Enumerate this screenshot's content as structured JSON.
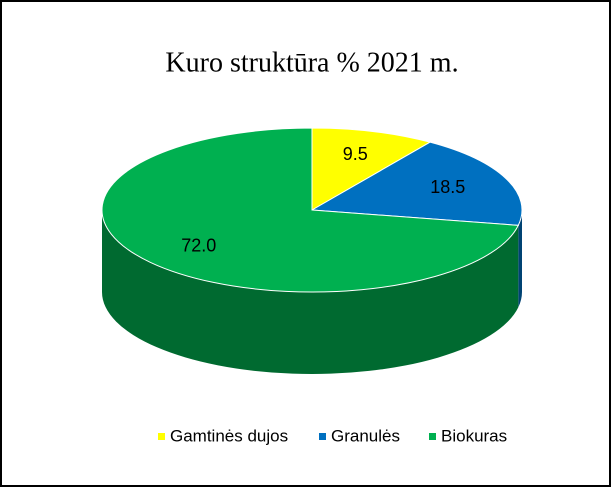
{
  "chart_data": {
    "type": "pie3d",
    "title": "Kuro struktūra % 2021 m.",
    "categories": [
      "Gamtinės  dujos",
      "Granulės",
      "Biokuras"
    ],
    "values": [
      9.5,
      18.5,
      72.0
    ],
    "value_labels": [
      "9.5",
      "18.5",
      "72.0"
    ],
    "colors": [
      "#ffff00",
      "#0070c0",
      "#00b050"
    ],
    "legend": "bottom"
  }
}
